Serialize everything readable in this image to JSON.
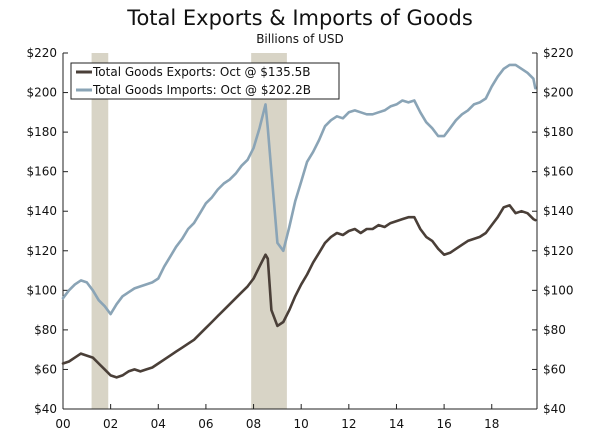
{
  "chart_data": {
    "type": "line",
    "title": "Total Exports & Imports of Goods",
    "subtitle": "Billions of USD",
    "xlabel": "",
    "ylabel": "",
    "xlim": [
      2000,
      2019.9
    ],
    "ylim": [
      40,
      220
    ],
    "y_ticks": [
      40,
      60,
      80,
      100,
      120,
      140,
      160,
      180,
      200,
      220
    ],
    "y_tick_labels": [
      "$40",
      "$60",
      "$80",
      "$100",
      "$120",
      "$140",
      "$160",
      "$180",
      "$200",
      "$220"
    ],
    "x_ticks": [
      2000,
      2002,
      2004,
      2006,
      2008,
      2010,
      2012,
      2014,
      2016,
      2018
    ],
    "x_tick_labels": [
      "00",
      "02",
      "04",
      "06",
      "08",
      "10",
      "12",
      "14",
      "16",
      "18"
    ],
    "recessions": [
      [
        2001.2,
        2001.9
      ],
      [
        2007.9,
        2009.4
      ]
    ],
    "colors": {
      "exports": "#4a3f38",
      "imports": "#8aa4b6",
      "recession": "#d8d4c6",
      "axis": "#222222"
    },
    "series": [
      {
        "name": "Total Goods Exports: Oct @ $135.5B",
        "key": "exports",
        "x": [
          2000.0,
          2000.25,
          2000.5,
          2000.75,
          2001.0,
          2001.25,
          2001.5,
          2001.75,
          2002.0,
          2002.25,
          2002.5,
          2002.75,
          2003.0,
          2003.25,
          2003.5,
          2003.75,
          2004.0,
          2004.25,
          2004.5,
          2004.75,
          2005.0,
          2005.25,
          2005.5,
          2005.75,
          2006.0,
          2006.25,
          2006.5,
          2006.75,
          2007.0,
          2007.25,
          2007.5,
          2007.75,
          2008.0,
          2008.25,
          2008.5,
          2008.6,
          2008.75,
          2009.0,
          2009.25,
          2009.5,
          2009.75,
          2010.0,
          2010.25,
          2010.5,
          2010.75,
          2011.0,
          2011.25,
          2011.5,
          2011.75,
          2012.0,
          2012.25,
          2012.5,
          2012.75,
          2013.0,
          2013.25,
          2013.5,
          2013.75,
          2014.0,
          2014.25,
          2014.5,
          2014.75,
          2015.0,
          2015.25,
          2015.5,
          2015.75,
          2016.0,
          2016.25,
          2016.5,
          2016.75,
          2017.0,
          2017.25,
          2017.5,
          2017.75,
          2018.0,
          2018.25,
          2018.5,
          2018.75,
          2019.0,
          2019.25,
          2019.5,
          2019.75,
          2019.83
        ],
        "values": [
          63,
          64,
          66,
          68,
          67,
          66,
          63,
          60,
          57,
          56,
          57,
          59,
          60,
          59,
          60,
          61,
          63,
          65,
          67,
          69,
          71,
          73,
          75,
          78,
          81,
          84,
          87,
          90,
          93,
          96,
          99,
          102,
          106,
          112,
          118,
          116,
          90,
          82,
          84,
          90,
          97,
          103,
          108,
          114,
          119,
          124,
          127,
          129,
          128,
          130,
          131,
          129,
          131,
          131,
          133,
          132,
          134,
          135,
          136,
          137,
          137,
          131,
          127,
          125,
          121,
          118,
          119,
          121,
          123,
          125,
          126,
          127,
          129,
          133,
          137,
          142,
          143,
          139,
          140,
          139,
          136,
          135.5
        ]
      },
      {
        "name": "Total Goods Imports: Oct @ $202.2B",
        "key": "imports",
        "x": [
          2000.0,
          2000.25,
          2000.5,
          2000.75,
          2001.0,
          2001.25,
          2001.5,
          2001.75,
          2002.0,
          2002.25,
          2002.5,
          2002.75,
          2003.0,
          2003.25,
          2003.5,
          2003.75,
          2004.0,
          2004.25,
          2004.5,
          2004.75,
          2005.0,
          2005.25,
          2005.5,
          2005.75,
          2006.0,
          2006.25,
          2006.5,
          2006.75,
          2007.0,
          2007.25,
          2007.5,
          2007.75,
          2008.0,
          2008.25,
          2008.5,
          2008.6,
          2008.75,
          2009.0,
          2009.25,
          2009.5,
          2009.75,
          2010.0,
          2010.25,
          2010.5,
          2010.75,
          2011.0,
          2011.25,
          2011.5,
          2011.75,
          2012.0,
          2012.25,
          2012.5,
          2012.75,
          2013.0,
          2013.25,
          2013.5,
          2013.75,
          2014.0,
          2014.25,
          2014.5,
          2014.75,
          2015.0,
          2015.25,
          2015.5,
          2015.75,
          2016.0,
          2016.25,
          2016.5,
          2016.75,
          2017.0,
          2017.25,
          2017.5,
          2017.75,
          2018.0,
          2018.25,
          2018.5,
          2018.75,
          2019.0,
          2019.25,
          2019.5,
          2019.75,
          2019.83
        ],
        "values": [
          96,
          100,
          103,
          105,
          104,
          100,
          95,
          92,
          88,
          93,
          97,
          99,
          101,
          102,
          103,
          104,
          106,
          112,
          117,
          122,
          126,
          131,
          134,
          139,
          144,
          147,
          151,
          154,
          156,
          159,
          163,
          166,
          172,
          182,
          194,
          182,
          160,
          124,
          120,
          132,
          145,
          155,
          165,
          170,
          176,
          183,
          186,
          188,
          187,
          190,
          191,
          190,
          189,
          189,
          190,
          191,
          193,
          194,
          196,
          195,
          196,
          190,
          185,
          182,
          178,
          178,
          182,
          186,
          189,
          191,
          194,
          195,
          197,
          203,
          208,
          212,
          214,
          214,
          212,
          210,
          207,
          202.2
        ]
      }
    ]
  }
}
